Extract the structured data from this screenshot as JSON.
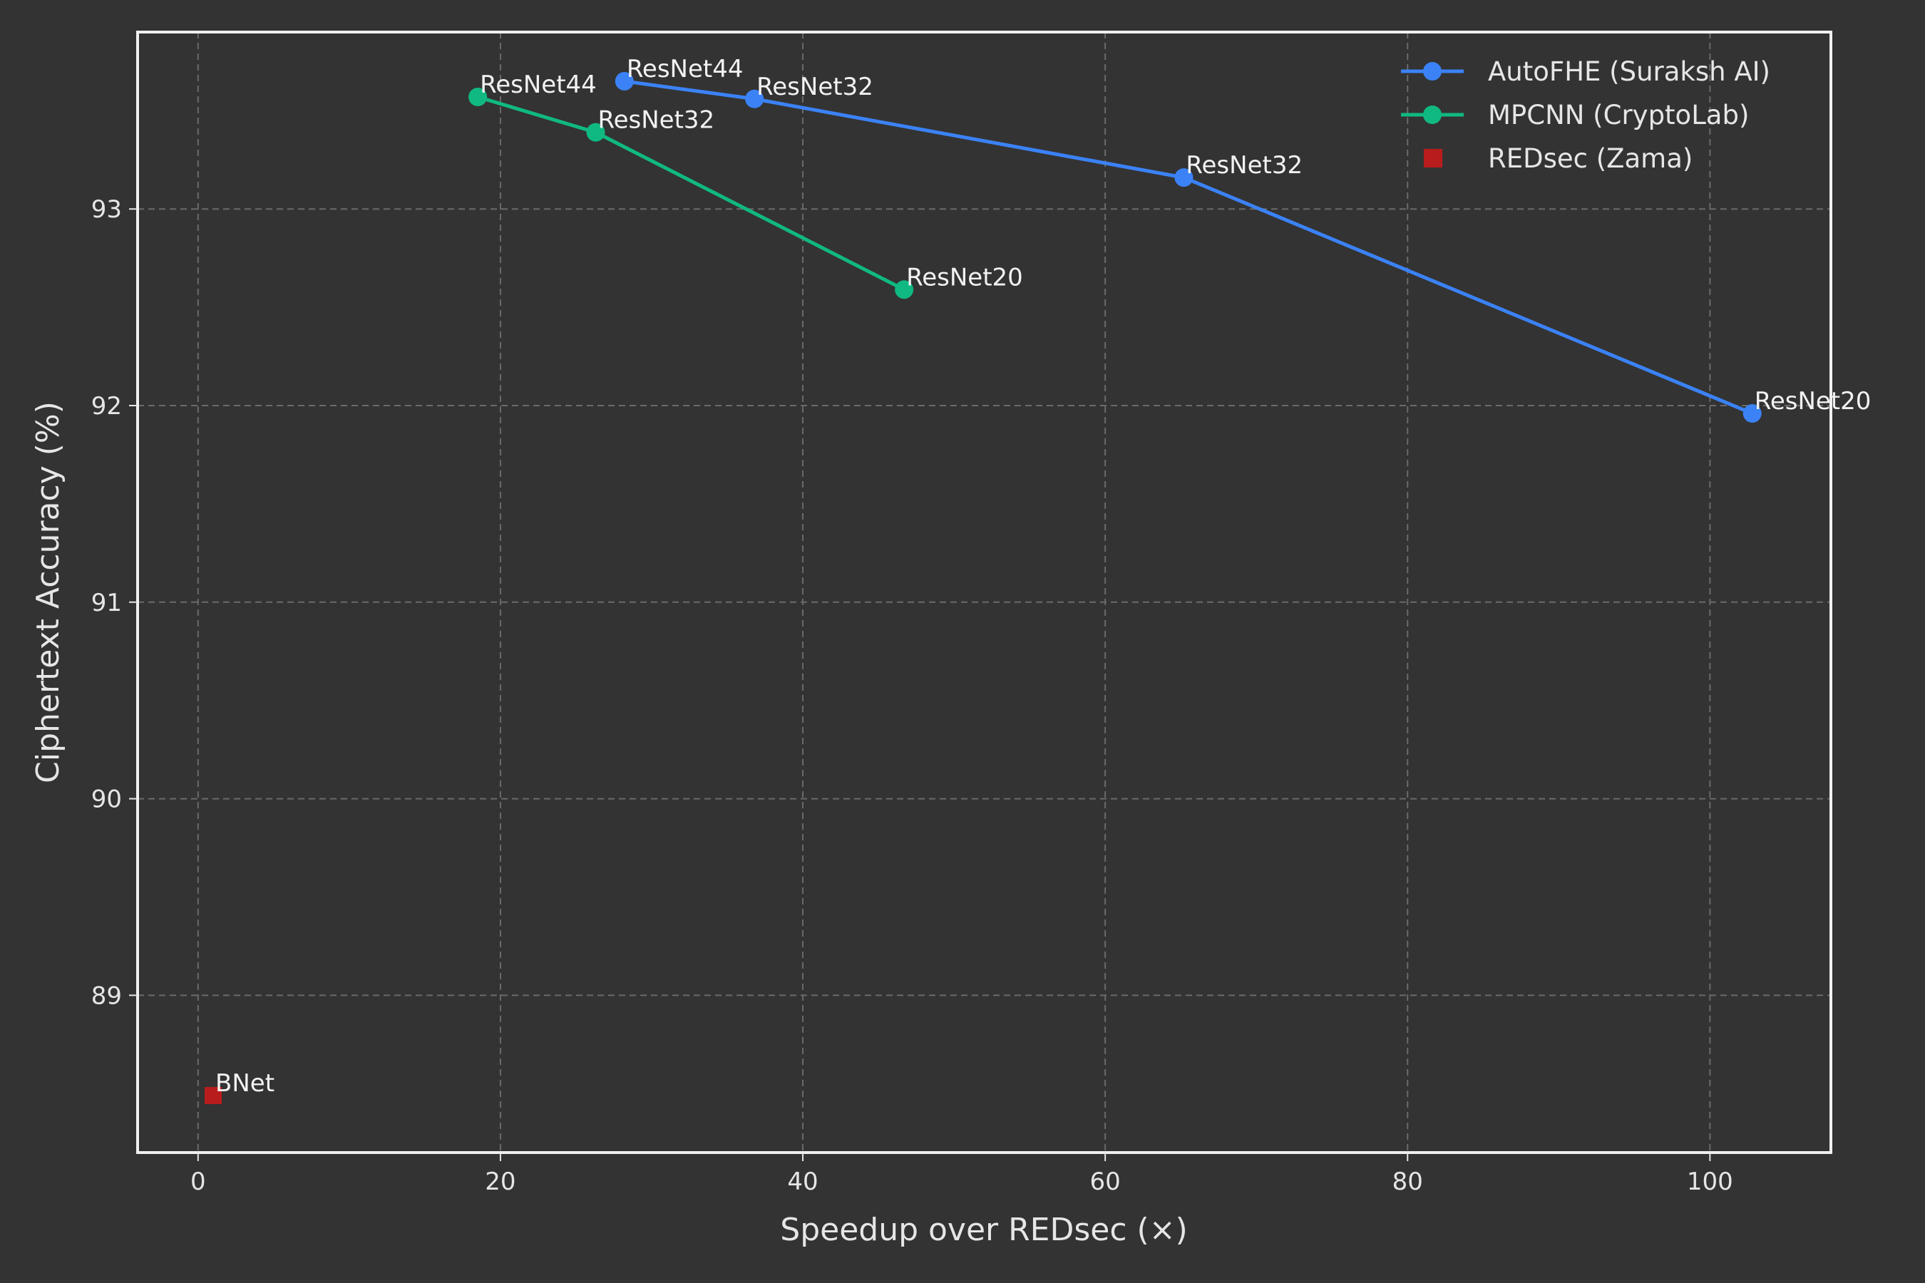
{
  "chart_data": {
    "type": "scatter",
    "title": "",
    "xlabel": "Speedup over REDsec (×)",
    "ylabel": "Ciphertext Accuracy (%)",
    "xlim": [
      -4,
      108
    ],
    "ylim": [
      88.2,
      93.9
    ],
    "xticks": [
      0,
      20,
      40,
      60,
      80,
      100
    ],
    "yticks": [
      89,
      90,
      91,
      92,
      93
    ],
    "grid": true,
    "legend_position": "top-right",
    "series": [
      {
        "name": "AutoFHE (Suraksh AI)",
        "style": "line-marker",
        "marker": "circle",
        "color": "#3b82f6",
        "points": [
          {
            "x": 28.2,
            "y": 93.65,
            "label": "ResNet44"
          },
          {
            "x": 36.8,
            "y": 93.56,
            "label": "ResNet32"
          },
          {
            "x": 65.2,
            "y": 93.16,
            "label": "ResNet32"
          },
          {
            "x": 102.8,
            "y": 91.96,
            "label": "ResNet20"
          }
        ]
      },
      {
        "name": "MPCNN (CryptoLab)",
        "style": "line-marker",
        "marker": "circle",
        "color": "#10b981",
        "points": [
          {
            "x": 18.5,
            "y": 93.57,
            "label": "ResNet44"
          },
          {
            "x": 26.3,
            "y": 93.39,
            "label": "ResNet32"
          },
          {
            "x": 46.7,
            "y": 92.59,
            "label": "ResNet20"
          }
        ]
      },
      {
        "name": "REDsec (Zama)",
        "style": "marker",
        "marker": "square",
        "color": "#b91c1c",
        "points": [
          {
            "x": 1.0,
            "y": 88.49,
            "label": "BNet"
          }
        ]
      }
    ]
  }
}
